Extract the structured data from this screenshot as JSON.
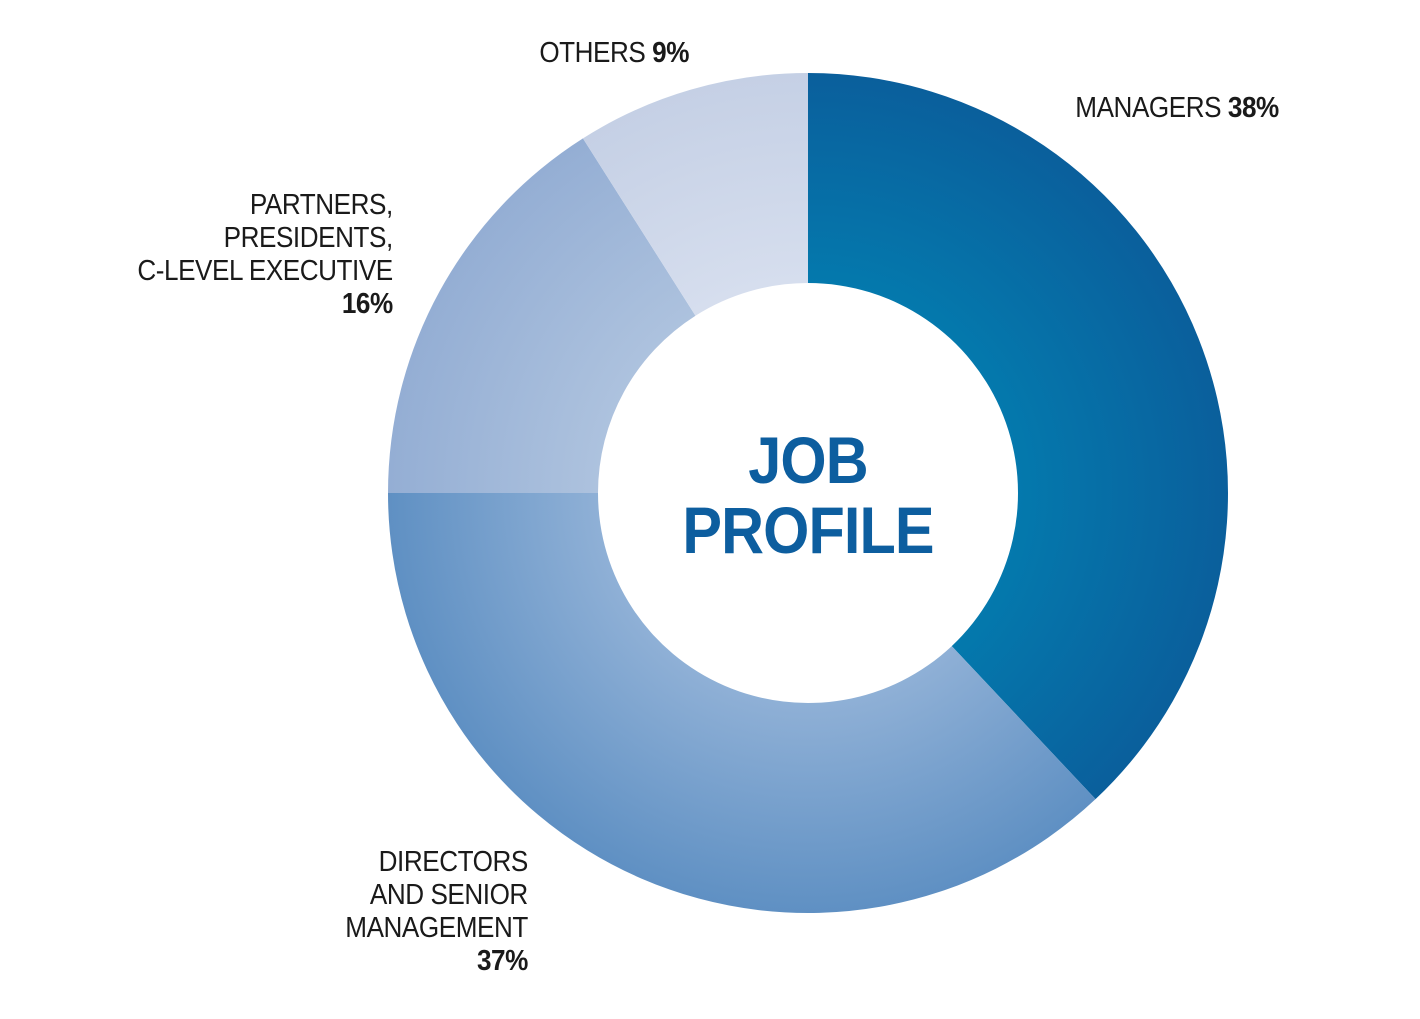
{
  "chart_data": {
    "type": "pie",
    "title": "JOB PROFILE",
    "slices": [
      {
        "label_lines": [
          "MANAGERS"
        ],
        "pct_text": "38%",
        "value": 38,
        "color": "#0a5f9c",
        "color_inner": "#0479ad"
      },
      {
        "label_lines": [
          "DIRECTORS",
          "AND SENIOR",
          "MANAGEMENT"
        ],
        "pct_text": "37%",
        "value": 37,
        "color": "#5f90c3",
        "color_inner": "#8fb0d6"
      },
      {
        "label_lines": [
          "PARTNERS,",
          "PRESIDENTS,",
          "C-LEVEL EXECUTIVE"
        ],
        "pct_text": "16%",
        "value": 16,
        "color": "#94aed4",
        "color_inner": "#adc2de"
      },
      {
        "label_lines": [
          "OTHERS"
        ],
        "pct_text": "9%",
        "value": 9,
        "color": "#c5d0e5",
        "color_inner": "#d6deee"
      }
    ]
  },
  "center": {
    "line1": "JOB",
    "line2": "PROFILE"
  }
}
